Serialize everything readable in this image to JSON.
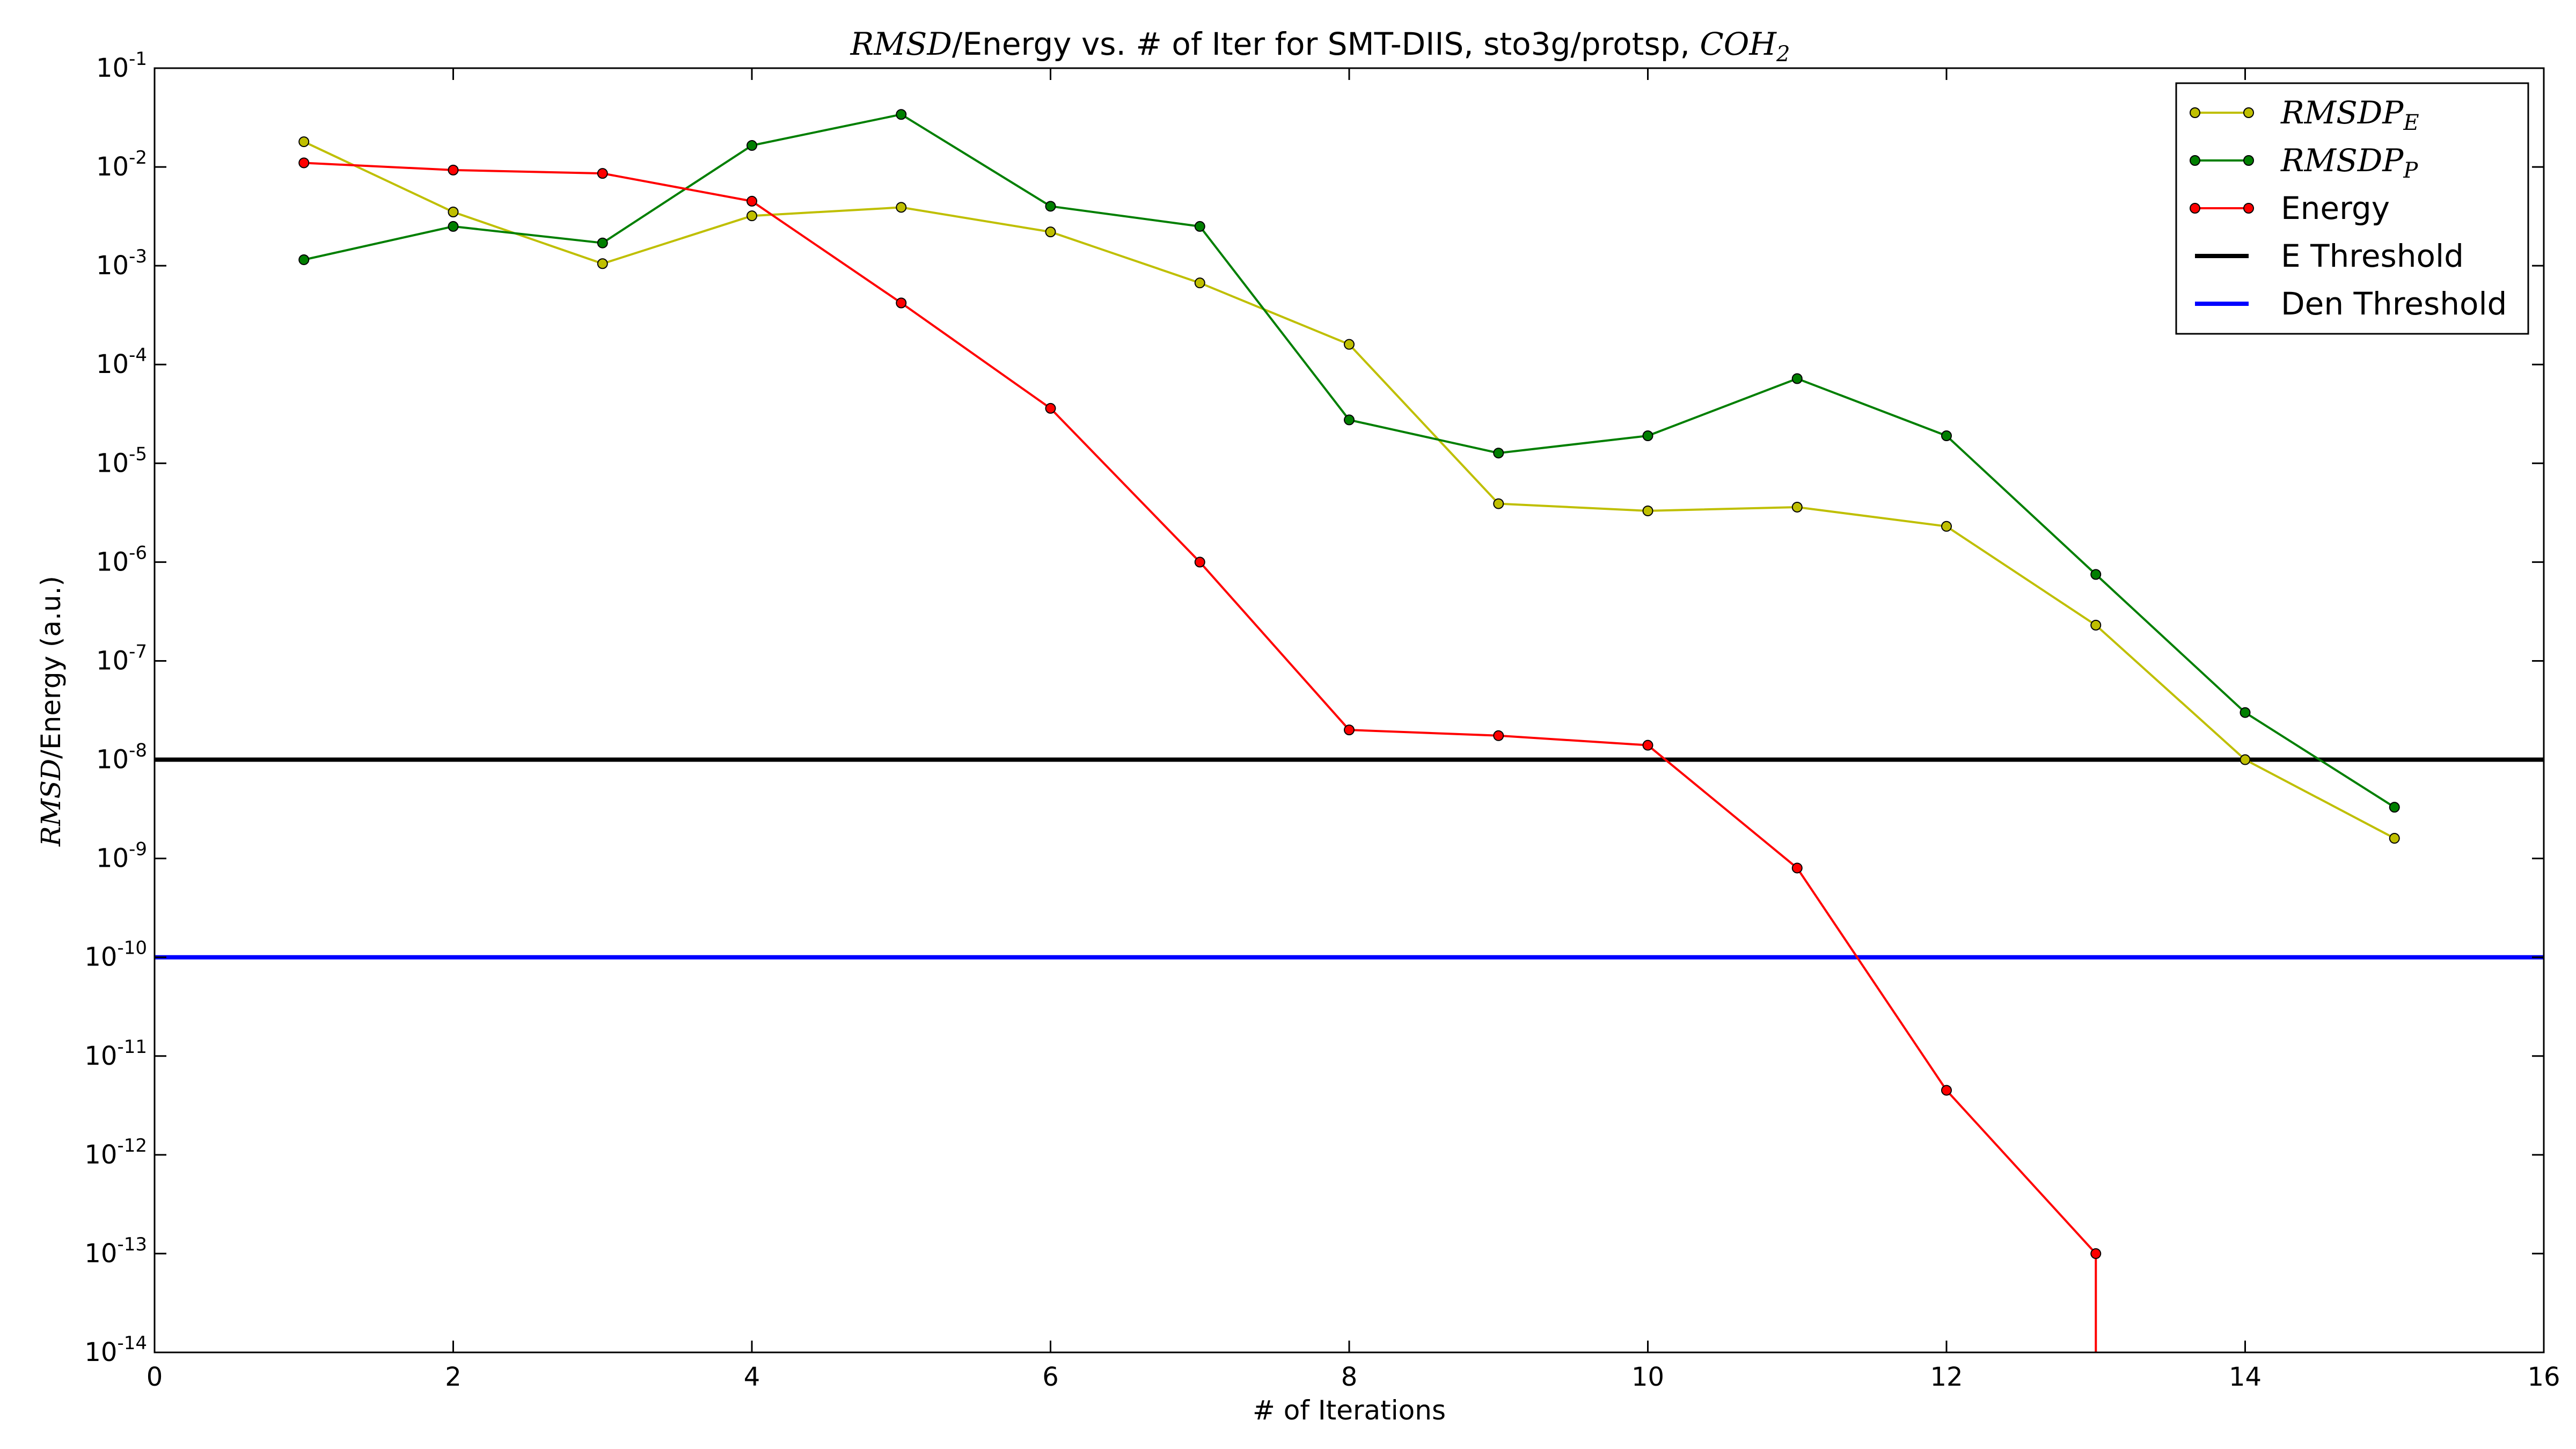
{
  "chart_data": {
    "type": "line",
    "title": {
      "prefix_math": "RMSD",
      "text": "/Energy vs. # of Iter for SMT-DIIS, sto3g/protsp, ",
      "suffix_math": "COH",
      "suffix_sub": "2"
    },
    "xlabel": "# of Iterations",
    "ylabel": {
      "math": "RMSD",
      "text": "/Energy (a.u.)"
    },
    "xlim": [
      0,
      16
    ],
    "ylim": [
      1e-14,
      0.1
    ],
    "yscale": "log",
    "grid": false,
    "legend_position": "top-right",
    "x_ticks": [
      "0",
      "2",
      "4",
      "6",
      "8",
      "10",
      "12",
      "14",
      "16"
    ],
    "y_ticks": [
      {
        "base": "10",
        "exp": "-1"
      },
      {
        "base": "10",
        "exp": "-2"
      },
      {
        "base": "10",
        "exp": "-3"
      },
      {
        "base": "10",
        "exp": "-4"
      },
      {
        "base": "10",
        "exp": "-5"
      },
      {
        "base": "10",
        "exp": "-6"
      },
      {
        "base": "10",
        "exp": "-7"
      },
      {
        "base": "10",
        "exp": "-8"
      },
      {
        "base": "10",
        "exp": "-9"
      },
      {
        "base": "10",
        "exp": "-10"
      },
      {
        "base": "10",
        "exp": "-11"
      },
      {
        "base": "10",
        "exp": "-12"
      },
      {
        "base": "10",
        "exp": "-13"
      },
      {
        "base": "10",
        "exp": "-14"
      }
    ],
    "series": [
      {
        "name": "RMSDP",
        "name_sub": "E",
        "color": "#bfbf00",
        "x": [
          1,
          2,
          3,
          4,
          5,
          6,
          7,
          8,
          9,
          10,
          11,
          12,
          13,
          14,
          15
        ],
        "values": [
          0.018,
          0.0035,
          0.00105,
          0.0032,
          0.0039,
          0.0022,
          0.00067,
          0.00016,
          3.9e-06,
          3.3e-06,
          3.6e-06,
          2.3e-06,
          2.3e-07,
          1e-08,
          1.6e-09
        ]
      },
      {
        "name": "RMSDP",
        "name_sub": "P",
        "color": "#007f00",
        "x": [
          1,
          2,
          3,
          4,
          5,
          6,
          7,
          8,
          9,
          10,
          11,
          12,
          13,
          14,
          15
        ],
        "values": [
          0.00115,
          0.0025,
          0.0017,
          0.0165,
          0.034,
          0.004,
          0.0025,
          2.75e-05,
          1.27e-05,
          1.9e-05,
          7.2e-05,
          1.9e-05,
          7.5e-07,
          3e-08,
          3.3e-09
        ]
      },
      {
        "name": "Energy",
        "color": "#ff0000",
        "x": [
          1,
          2,
          3,
          4,
          5,
          6,
          7,
          8,
          9,
          10,
          11,
          12,
          13
        ],
        "values": [
          0.011,
          0.0093,
          0.0086,
          0.0045,
          0.00042,
          3.6e-05,
          1e-06,
          2e-08,
          1.75e-08,
          1.4e-08,
          8e-10,
          4.5e-12,
          1e-13
        ],
        "drops_below_axis_after_last": true
      },
      {
        "name": "E Threshold",
        "color": "#000000",
        "type": "hline",
        "value": 1e-08
      },
      {
        "name": "Den Threshold",
        "color": "#0000ff",
        "type": "hline",
        "value": 1e-10
      }
    ]
  }
}
